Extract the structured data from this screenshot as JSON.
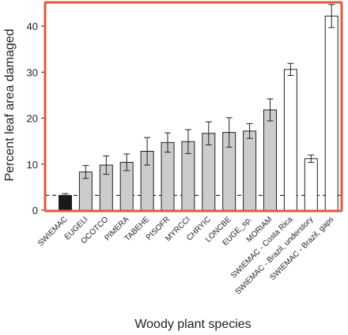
{
  "chart_data": {
    "type": "bar",
    "xlabel": "Woody plant species",
    "ylabel": "Percent leaf area damaged",
    "ylim": [
      0,
      45
    ],
    "yticks": [
      0,
      10,
      20,
      30,
      40
    ],
    "grid": false,
    "reference_line": {
      "y": 3.2,
      "style": "dashed"
    },
    "categories": [
      "SWIEMAC",
      "EUGELI",
      "OCOTCO",
      "PIMERA",
      "TABEHE",
      "PISOFR",
      "MYRCCI",
      "CHRYIC",
      "LONCBE",
      "EUGE_sp.",
      "MORIAM",
      "SWIEMAC - Costa Rica",
      "SWIEMAC - Brazil, understory",
      "SWIEMAC - Brazil, gaps"
    ],
    "values": [
      3.2,
      8.3,
      9.8,
      10.4,
      12.8,
      14.7,
      14.9,
      16.7,
      16.9,
      17.2,
      21.8,
      30.6,
      11.2,
      42.2
    ],
    "errors": [
      0.4,
      1.4,
      2.0,
      1.8,
      3.0,
      2.1,
      2.6,
      2.5,
      3.2,
      1.6,
      2.4,
      1.3,
      0.8,
      2.5
    ],
    "bar_colors": [
      "#1a1a1a",
      "#cccccc",
      "#cccccc",
      "#cccccc",
      "#cccccc",
      "#cccccc",
      "#cccccc",
      "#cccccc",
      "#cccccc",
      "#cccccc",
      "#cccccc",
      "#ffffff",
      "#ffffff",
      "#ffffff"
    ],
    "frame_color": "#e2583e"
  }
}
